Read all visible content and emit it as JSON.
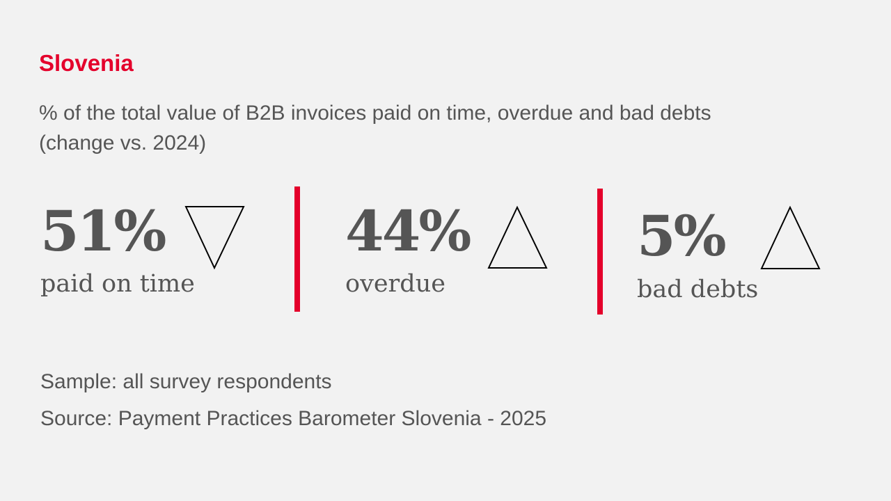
{
  "title": "Slovenia",
  "subtitle_line1": "% of the total value of B2B invoices paid on time, overdue and bad debts",
  "subtitle_line2": "(change vs. 2024)",
  "accent_color": "#e4002b",
  "chart_data": {
    "type": "table",
    "categories": [
      "paid on time",
      "overdue",
      "bad debts"
    ],
    "values": [
      51,
      44,
      5
    ],
    "value_labels": [
      "51%",
      "44%",
      "5%"
    ],
    "change_vs_2024": [
      "down",
      "up",
      "up"
    ],
    "icons": [
      "triangle-down-icon",
      "triangle-up-icon",
      "triangle-up-icon"
    ]
  },
  "footer": {
    "sample": "Sample: all survey respondents",
    "source": "Source: Payment Practices Barometer Slovenia - 2025"
  }
}
